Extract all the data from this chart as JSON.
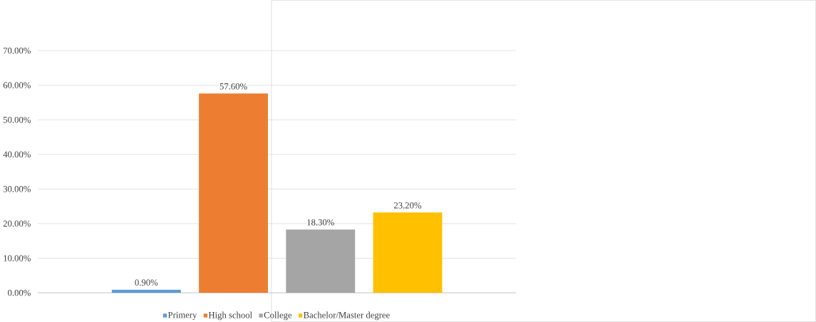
{
  "chart_data": {
    "type": "bar",
    "categories": [
      null
    ],
    "series": [
      {
        "name": "Primery",
        "color": "#5b9bd5",
        "values": [
          0.9
        ],
        "value_labels": [
          "0.90%"
        ]
      },
      {
        "name": "High school",
        "color": "#ed7d31",
        "values": [
          57.6
        ],
        "value_labels": [
          "57.60%"
        ]
      },
      {
        "name": "College",
        "color": "#a5a5a5",
        "values": [
          18.3
        ],
        "value_labels": [
          "18.30%"
        ]
      },
      {
        "name": "Bachelor/Master degree",
        "color": "#ffc000",
        "values": [
          23.2
        ],
        "value_labels": [
          "23.20%"
        ]
      }
    ],
    "ylim": [
      0,
      70
    ],
    "yticks": [
      {
        "value": 0,
        "label": "0.00%"
      },
      {
        "value": 10,
        "label": "10.00%"
      },
      {
        "value": 20,
        "label": "20.00%"
      },
      {
        "value": 30,
        "label": "30.00%"
      },
      {
        "value": 40,
        "label": "40.00%"
      },
      {
        "value": 50,
        "label": "50.00%"
      },
      {
        "value": 60,
        "label": "60.00%"
      },
      {
        "value": 70,
        "label": "70.00%"
      }
    ],
    "grid": "y",
    "legend": "bottom"
  }
}
